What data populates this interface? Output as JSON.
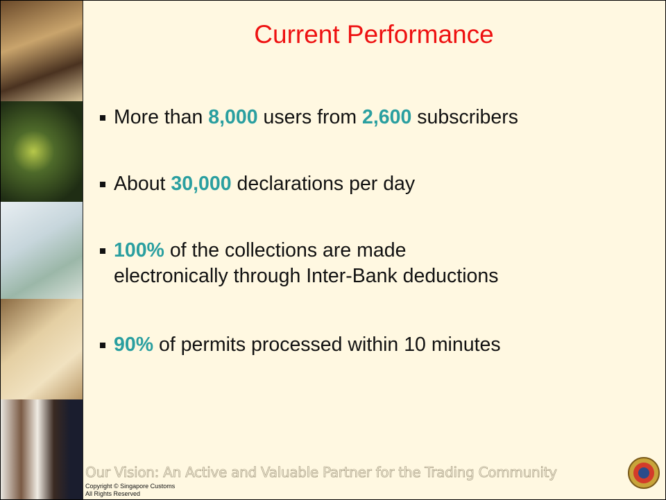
{
  "title": "Current Performance",
  "bullets": [
    {
      "lines": [
        [
          {
            "text": "More than ",
            "emphasis": false
          },
          {
            "text": "8,000",
            "emphasis": true
          },
          {
            "text": " users from ",
            "emphasis": false
          },
          {
            "text": "2,600",
            "emphasis": true
          },
          {
            "text": " subscribers",
            "emphasis": false
          }
        ]
      ]
    },
    {
      "lines": [
        [
          {
            "text": "About ",
            "emphasis": false
          },
          {
            "text": "30,000",
            "emphasis": true
          },
          {
            "text": " declarations per day",
            "emphasis": false
          }
        ]
      ]
    },
    {
      "lines": [
        [
          {
            "text": "100%",
            "emphasis": true
          },
          {
            "text": " of the collections are made",
            "emphasis": false
          }
        ],
        [
          {
            "text": "electronically through Inter-Bank deductions",
            "emphasis": false
          }
        ]
      ]
    },
    {
      "lines": [
        [
          {
            "text": "90%",
            "emphasis": true
          },
          {
            "text": " of permits processed within 10 minutes",
            "emphasis": false
          }
        ]
      ]
    }
  ],
  "footer": {
    "vision": "Our Vision: An Active and Valuable Partner for the Trading Community",
    "copyright": "Copyright © Singapore Customs",
    "rights": "All Rights Reserved"
  }
}
